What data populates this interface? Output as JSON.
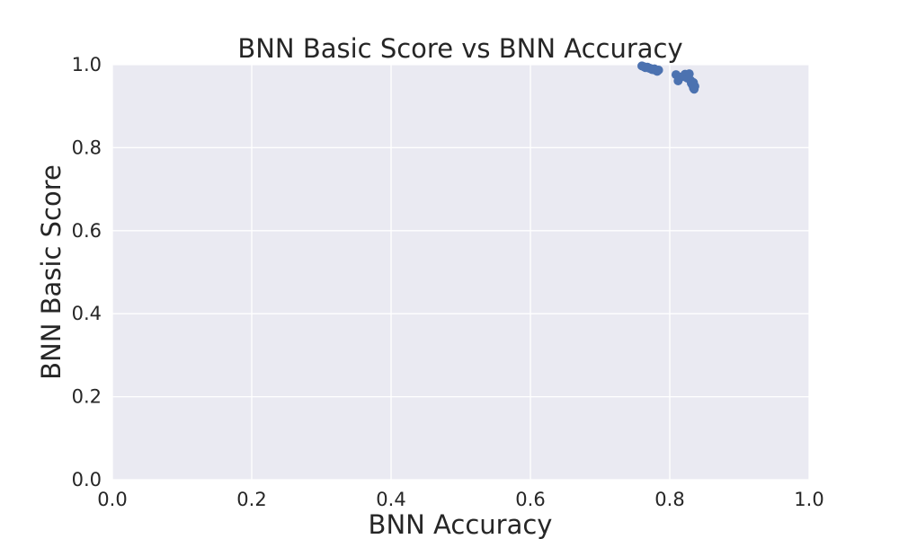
{
  "chart_data": {
    "type": "scatter",
    "title": "BNN Basic Score vs BNN Accuracy",
    "xlabel": "BNN Accuracy",
    "ylabel": "BNN Basic Score",
    "xlim": [
      0.0,
      1.0
    ],
    "ylim": [
      0.0,
      1.0
    ],
    "xticks": [
      "0.0",
      "0.2",
      "0.4",
      "0.6",
      "0.8",
      "1.0"
    ],
    "yticks": [
      "0.0",
      "0.2",
      "0.4",
      "0.6",
      "0.8",
      "1.0"
    ],
    "grid": true,
    "legend": "none",
    "colors": {
      "background": "#eaeaf2",
      "grid": "#ffffff",
      "points": "#4c72b0"
    },
    "series": [
      {
        "points": [
          [
            0.76,
            0.997
          ],
          [
            0.763,
            0.995
          ],
          [
            0.765,
            0.993
          ],
          [
            0.768,
            0.994
          ],
          [
            0.77,
            0.992
          ],
          [
            0.772,
            0.991
          ],
          [
            0.775,
            0.988
          ],
          [
            0.778,
            0.99
          ],
          [
            0.78,
            0.986
          ],
          [
            0.782,
            0.984
          ],
          [
            0.784,
            0.987
          ],
          [
            0.809,
            0.976
          ],
          [
            0.812,
            0.961
          ],
          [
            0.818,
            0.971
          ],
          [
            0.822,
            0.977
          ],
          [
            0.825,
            0.968
          ],
          [
            0.828,
            0.978
          ],
          [
            0.83,
            0.962
          ],
          [
            0.831,
            0.955
          ],
          [
            0.833,
            0.95
          ],
          [
            0.834,
            0.944
          ],
          [
            0.835,
            0.941
          ],
          [
            0.836,
            0.948
          ],
          [
            0.834,
            0.957
          ]
        ]
      }
    ]
  }
}
